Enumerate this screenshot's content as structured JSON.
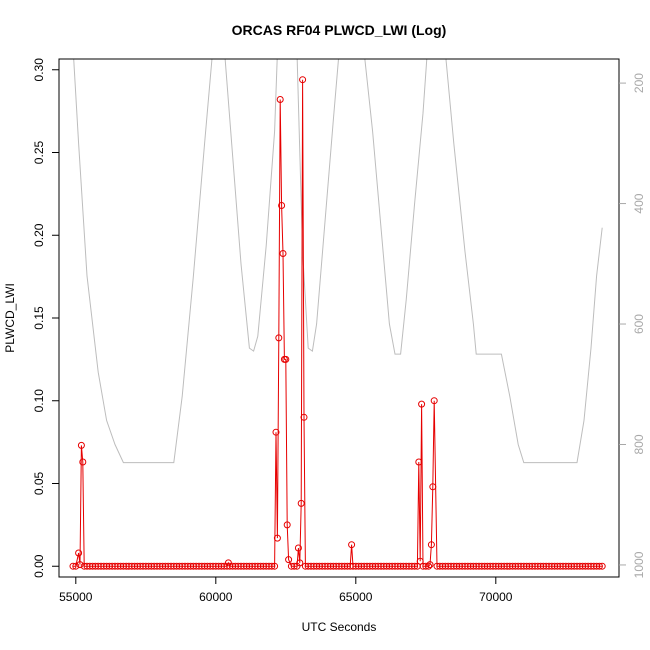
{
  "chart_data": {
    "type": "scatter",
    "title": "ORCAS RF04 PLWCD_LWI (Log)",
    "xlabel": "UTC Seconds",
    "ylabel": "PLWCD_LWI",
    "xlim": [
      54400,
      74400
    ],
    "ylim": [
      -0.0065,
      0.3065
    ],
    "xticks": [
      55000,
      60000,
      65000,
      70000
    ],
    "xtick_labels": [
      "55000",
      "60000",
      "65000",
      "70000"
    ],
    "yticks": [
      0.0,
      0.05,
      0.1,
      0.15,
      0.2,
      0.25,
      0.3
    ],
    "ytick_labels": [
      "0.00",
      "0.05",
      "0.10",
      "0.15",
      "0.20",
      "0.25",
      "0.30"
    ],
    "y2_axis": {
      "ticks": [
        200,
        400,
        600,
        800,
        1000
      ],
      "tick_labels": [
        "200",
        "400",
        "600",
        "800",
        "1000"
      ],
      "range": [
        1020,
        160
      ],
      "color": "#a8a8a8"
    },
    "grid": false,
    "colors": {
      "data": "#e60000",
      "secondary": "#bdbdbd"
    },
    "series": [
      {
        "style": "points-and-line",
        "color": "#e60000",
        "baseline": {
          "x_start": 54900,
          "x_end": 73800,
          "step": 100,
          "y": 0
        },
        "points": [
          [
            55100,
            0.008
          ],
          [
            55150,
            0.001
          ],
          [
            55200,
            0.073
          ],
          [
            55250,
            0.063
          ],
          [
            60450,
            0.002
          ],
          [
            62150,
            0.081
          ],
          [
            62200,
            0.017
          ],
          [
            62250,
            0.138
          ],
          [
            62300,
            0.282
          ],
          [
            62350,
            0.218
          ],
          [
            62400,
            0.189
          ],
          [
            62450,
            0.125
          ],
          [
            62500,
            0.125
          ],
          [
            62550,
            0.025
          ],
          [
            62600,
            0.004
          ],
          [
            62950,
            0.011
          ],
          [
            63000,
            0.002
          ],
          [
            63050,
            0.038
          ],
          [
            63100,
            0.294
          ],
          [
            63150,
            0.09
          ],
          [
            64850,
            0.013
          ],
          [
            67250,
            0.063
          ],
          [
            67300,
            0.003
          ],
          [
            67350,
            0.098
          ],
          [
            67650,
            0.001
          ],
          [
            67700,
            0.013
          ],
          [
            67750,
            0.048
          ],
          [
            67800,
            0.1
          ]
        ]
      },
      {
        "name": "",
        "style": "line",
        "axis": "y2",
        "color": "#bdbdbd",
        "points": [
          [
            54900,
            140
          ],
          [
            55100,
            300
          ],
          [
            55400,
            520
          ],
          [
            55800,
            680
          ],
          [
            56100,
            760
          ],
          [
            56400,
            800
          ],
          [
            56700,
            830
          ],
          [
            58500,
            830
          ],
          [
            58800,
            720
          ],
          [
            59200,
            520
          ],
          [
            59600,
            300
          ],
          [
            59900,
            140
          ],
          [
            60300,
            140
          ],
          [
            60600,
            320
          ],
          [
            60900,
            500
          ],
          [
            61200,
            640
          ],
          [
            61350,
            645
          ],
          [
            61500,
            620
          ],
          [
            61800,
            470
          ],
          [
            62100,
            280
          ],
          [
            62200,
            150
          ],
          [
            62900,
            150
          ],
          [
            63100,
            480
          ],
          [
            63300,
            640
          ],
          [
            63450,
            645
          ],
          [
            63600,
            600
          ],
          [
            63900,
            430
          ],
          [
            64200,
            260
          ],
          [
            64400,
            150
          ],
          [
            65300,
            150
          ],
          [
            65600,
            280
          ],
          [
            65900,
            440
          ],
          [
            66200,
            600
          ],
          [
            66400,
            650
          ],
          [
            66600,
            650
          ],
          [
            66800,
            560
          ],
          [
            67100,
            400
          ],
          [
            67400,
            250
          ],
          [
            67550,
            150
          ],
          [
            68200,
            150
          ],
          [
            68500,
            300
          ],
          [
            68900,
            480
          ],
          [
            69200,
            600
          ],
          [
            69300,
            650
          ],
          [
            70200,
            650
          ],
          [
            70500,
            720
          ],
          [
            70800,
            800
          ],
          [
            71000,
            830
          ],
          [
            72900,
            830
          ],
          [
            73150,
            760
          ],
          [
            73400,
            640
          ],
          [
            73600,
            520
          ],
          [
            73800,
            440
          ]
        ]
      }
    ]
  }
}
